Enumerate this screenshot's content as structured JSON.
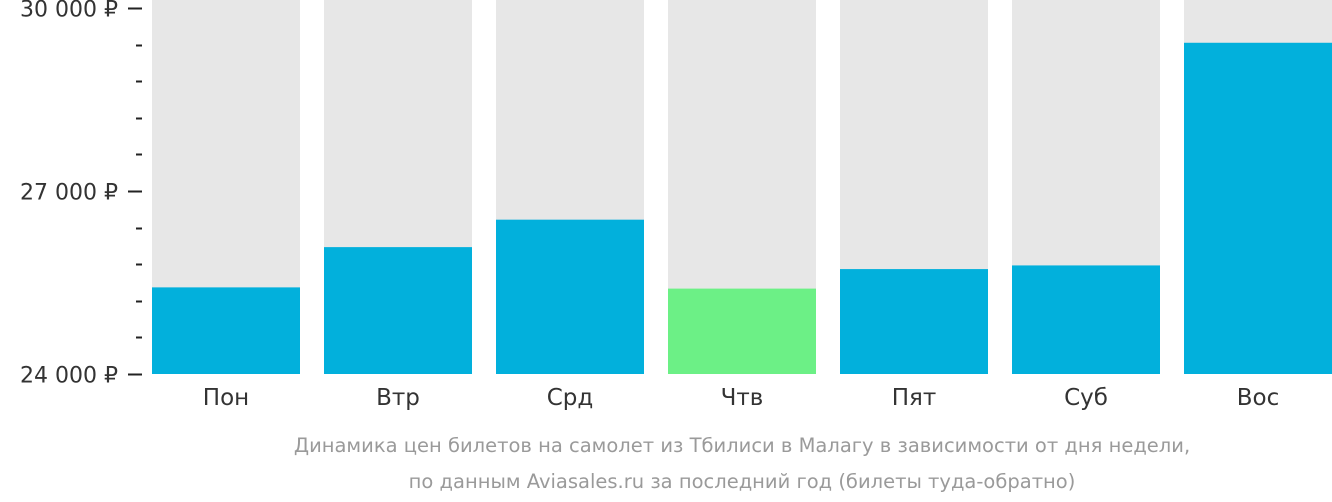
{
  "chart_data": {
    "type": "bar",
    "categories": [
      "Пон",
      "Втр",
      "Срд",
      "Чтв",
      "Пят",
      "Суб",
      "Вос"
    ],
    "values": [
      25420,
      26080,
      26530,
      25400,
      25720,
      25780,
      29430
    ],
    "ylim": [
      24000,
      30000
    ],
    "y_ticks_major": [
      30000,
      27000,
      24000
    ],
    "y_tick_labels": [
      "30 000 ₽",
      "27 000 ₽",
      "24 000 ₽"
    ],
    "y_minor_step": 600,
    "highlight_index": 3,
    "colors": {
      "bar": "#02b0dc",
      "highlight": "#6cf086",
      "background_bar": "#e7e7e7",
      "axis": "#222222"
    },
    "caption_lines": [
      "Динамика цен билетов на самолет из Тбилиси в Малагу в зависимости от дня недели,",
      "по данным Aviasales.ru за последний год (билеты туда-обратно)"
    ]
  }
}
